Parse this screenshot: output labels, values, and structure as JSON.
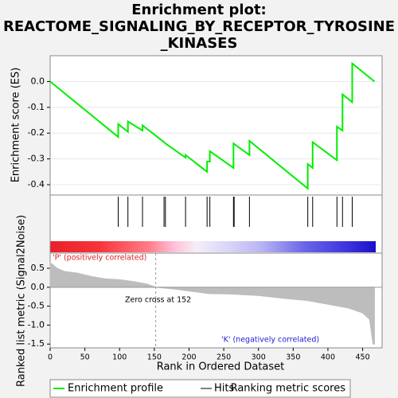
{
  "chart_data": {
    "type": "enrichment",
    "title": [
      "Enrichment plot:",
      "REACTOME_SIGNALING_BY_RECEPTOR_TYROSINE",
      "_KINASES"
    ],
    "xlabel": "Rank in Ordered Dataset",
    "xlim": [
      0,
      478
    ],
    "xticks": [
      0,
      50,
      100,
      150,
      200,
      250,
      300,
      350,
      400,
      450
    ],
    "es": {
      "ylabel": "Enrichment score (ES)",
      "name": "Enrichment profile",
      "color": "#00ee00",
      "ylim": [
        -0.44,
        0.1
      ],
      "yticks": [
        {
          "value": 0,
          "label": "0.0"
        },
        -0.1,
        -0.2,
        -0.3,
        -0.4
      ],
      "x": [
        0,
        98,
        98,
        112,
        112,
        133,
        133,
        164,
        166,
        195,
        195,
        226,
        226,
        230,
        230,
        264,
        264,
        287,
        287,
        371,
        371,
        378,
        378,
        413,
        413,
        421,
        421,
        435,
        435,
        467
      ],
      "values": [
        0,
        -0.215,
        -0.165,
        -0.195,
        -0.155,
        -0.19,
        -0.17,
        -0.235,
        -0.24,
        -0.295,
        -0.285,
        -0.35,
        -0.31,
        -0.31,
        -0.27,
        -0.335,
        -0.24,
        -0.285,
        -0.23,
        -0.415,
        -0.32,
        -0.335,
        -0.235,
        -0.305,
        -0.175,
        -0.19,
        -0.05,
        -0.08,
        0.07,
        0
      ]
    },
    "hits": {
      "name": "Hits",
      "color": "#000000",
      "x": [
        98,
        112,
        133,
        164,
        166,
        195,
        226,
        230,
        264,
        265,
        287,
        371,
        378,
        413,
        421,
        435
      ]
    },
    "metric": {
      "ylabel": "Ranked list metric (Signal2Noise)",
      "name": "Ranking metric scores",
      "color": "#bdbdbd",
      "ylim": [
        -1.6,
        0.9
      ],
      "yticks": [
        0.5,
        {
          "value": 0,
          "label": "0.0"
        },
        -0.5,
        {
          "value": -1,
          "label": "-1.0"
        },
        -1.5
      ],
      "x": [
        0,
        10,
        20,
        40,
        60,
        80,
        100,
        120,
        140,
        152,
        180,
        200,
        230,
        260,
        300,
        340,
        370,
        400,
        430,
        450,
        460,
        465,
        467
      ],
      "values": [
        0.65,
        0.5,
        0.42,
        0.37,
        0.28,
        0.22,
        0.2,
        0.15,
        0.08,
        0,
        -0.05,
        -0.1,
        -0.17,
        -0.18,
        -0.22,
        -0.3,
        -0.35,
        -0.45,
        -0.55,
        -0.68,
        -0.85,
        -1.5,
        -1.5
      ]
    },
    "zero_cross": 152,
    "annotations": {
      "positive": "'P' (positively correlated)",
      "zero_cross": "Zero cross at 152",
      "negative": "'K' (negatively correlated)"
    }
  }
}
